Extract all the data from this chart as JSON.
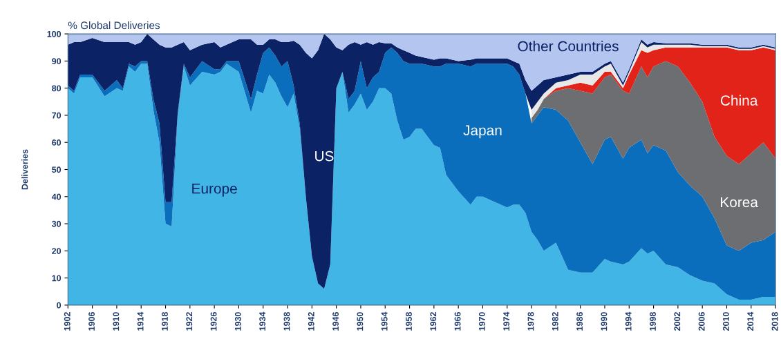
{
  "chart_data": {
    "type": "area",
    "stacked": true,
    "title": "% Global Deliveries",
    "ylabel": "Deliveries",
    "x": [
      1902,
      1903,
      1904,
      1906,
      1908,
      1910,
      1911,
      1912,
      1913,
      1914,
      1915,
      1916,
      1917,
      1918,
      1919,
      1920,
      1921,
      1922,
      1924,
      1926,
      1927,
      1928,
      1930,
      1932,
      1933,
      1934,
      1935,
      1936,
      1937,
      1938,
      1939,
      1940,
      1941,
      1942,
      1943,
      1944,
      1945,
      1946,
      1947,
      1948,
      1949,
      1950,
      1951,
      1952,
      1953,
      1954,
      1955,
      1956,
      1957,
      1958,
      1959,
      1960,
      1962,
      1963,
      1964,
      1966,
      1968,
      1969,
      1970,
      1972,
      1974,
      1975,
      1976,
      1977,
      1978,
      1979,
      1980,
      1982,
      1984,
      1986,
      1988,
      1990,
      1991,
      1993,
      1994,
      1996,
      1997,
      1998,
      2000,
      2002,
      2004,
      2006,
      2008,
      2010,
      2012,
      2014,
      2016,
      2018
    ],
    "series": [
      {
        "name": "Europe",
        "color": "#41b6e6",
        "values": [
          80,
          78,
          84,
          84,
          77,
          80,
          79,
          88,
          86,
          89,
          89,
          72,
          60,
          30,
          29,
          70,
          88,
          81,
          86,
          85,
          86,
          89,
          86,
          71,
          79,
          78,
          85,
          82,
          77,
          73,
          78,
          65,
          40,
          18,
          8,
          6,
          15,
          80,
          86,
          71,
          74,
          78,
          72,
          75,
          80,
          80,
          78,
          68,
          61,
          62,
          65,
          65,
          59,
          58,
          48,
          42,
          37,
          40,
          40,
          38,
          36,
          37,
          37,
          34,
          27,
          24,
          20,
          23,
          13,
          12,
          12,
          17,
          16,
          15,
          16,
          21,
          19,
          20,
          15,
          14,
          11,
          9,
          8,
          4,
          2,
          2,
          3,
          3
        ]
      },
      {
        "name": "Japan",
        "color": "#0a6ebd",
        "values": [
          1,
          1,
          1,
          1,
          2,
          3,
          1,
          1,
          2,
          1,
          1,
          4,
          7,
          8,
          9,
          1,
          1,
          3,
          4,
          2,
          1,
          1,
          4,
          5,
          6,
          15,
          10,
          10,
          11,
          17,
          3,
          2,
          0,
          0,
          0,
          0,
          0,
          0,
          0,
          5,
          5,
          12,
          8,
          9,
          6,
          13,
          17,
          25,
          29,
          27,
          24,
          24,
          29,
          30,
          41,
          47,
          51,
          49,
          49,
          51,
          53,
          51,
          48,
          44,
          40,
          46,
          53,
          49,
          55,
          48,
          40,
          44,
          46,
          39,
          42,
          40,
          37,
          39,
          42,
          35,
          33,
          31,
          24,
          18,
          18,
          21,
          21,
          24
        ]
      },
      {
        "name": "Korea",
        "color": "#6d6e71",
        "values": [
          null,
          null,
          null,
          null,
          null,
          null,
          null,
          null,
          null,
          null,
          null,
          null,
          null,
          null,
          null,
          null,
          null,
          null,
          null,
          null,
          null,
          null,
          null,
          null,
          null,
          null,
          null,
          null,
          null,
          null,
          null,
          null,
          null,
          null,
          null,
          null,
          null,
          null,
          null,
          null,
          null,
          null,
          null,
          null,
          null,
          null,
          null,
          null,
          null,
          null,
          null,
          null,
          null,
          null,
          null,
          null,
          null,
          null,
          null,
          null,
          null,
          null,
          null,
          null,
          2,
          2,
          3,
          7,
          12,
          19,
          26,
          23,
          23,
          25,
          20,
          27,
          28,
          29,
          33,
          39,
          38,
          35,
          30,
          33,
          32,
          33,
          36,
          27
        ]
      },
      {
        "name": "China",
        "color": "#e2231a",
        "values": [
          null,
          null,
          null,
          null,
          null,
          null,
          null,
          null,
          null,
          null,
          null,
          null,
          null,
          null,
          null,
          null,
          null,
          null,
          null,
          null,
          null,
          null,
          null,
          null,
          null,
          null,
          null,
          null,
          null,
          null,
          null,
          null,
          null,
          null,
          null,
          null,
          null,
          null,
          null,
          null,
          null,
          null,
          null,
          null,
          null,
          null,
          null,
          null,
          null,
          null,
          null,
          null,
          null,
          null,
          null,
          null,
          null,
          null,
          null,
          null,
          null,
          null,
          null,
          null,
          null,
          null,
          0,
          1,
          1,
          3,
          3,
          2,
          1,
          1,
          7,
          6,
          9,
          6,
          5,
          7,
          13,
          20,
          33,
          40,
          42,
          38,
          35,
          40
        ]
      },
      {
        "color": "#e8e8e8",
        "values": [
          null,
          null,
          null,
          null,
          null,
          null,
          null,
          null,
          null,
          null,
          null,
          null,
          null,
          null,
          null,
          null,
          null,
          null,
          null,
          null,
          null,
          null,
          null,
          null,
          null,
          null,
          null,
          null,
          null,
          null,
          null,
          null,
          null,
          null,
          null,
          null,
          null,
          null,
          null,
          null,
          null,
          null,
          null,
          null,
          null,
          null,
          null,
          null,
          null,
          null,
          null,
          null,
          null,
          null,
          null,
          null,
          null,
          null,
          null,
          null,
          null,
          null,
          null,
          null,
          3,
          3,
          2,
          2,
          2,
          3,
          4,
          2,
          3,
          1,
          1,
          3,
          2,
          2,
          1,
          1,
          1,
          0.5,
          0.5,
          0.5,
          0.5,
          0.5,
          0.5,
          0.5
        ]
      },
      {
        "name": "US",
        "color": "#0b2265",
        "values": [
          15,
          18,
          12,
          13.5,
          18,
          14,
          17,
          8,
          8,
          7,
          10,
          22,
          29,
          57,
          57,
          25,
          8,
          10,
          6,
          10,
          8,
          6,
          8,
          22,
          11,
          3,
          3,
          6,
          9,
          7,
          16.5,
          29,
          53,
          73,
          86,
          94,
          83,
          15,
          8,
          20,
          18,
          6,
          17,
          12,
          11,
          3.5,
          1.5,
          2,
          4,
          4,
          3,
          2.5,
          2.5,
          3,
          2,
          1,
          2.5,
          2,
          2,
          2,
          2,
          2,
          4,
          5,
          7,
          6,
          5,
          2,
          2,
          1,
          1,
          1,
          1,
          1,
          1,
          1,
          1,
          1,
          0.5,
          0.5,
          0.5,
          0.5,
          0.5,
          0.5,
          0.5,
          0.5,
          0.5,
          0.5
        ]
      },
      {
        "name": "Other Countries",
        "color": "#b4c6f0",
        "values": [
          4,
          3,
          3,
          1.5,
          3,
          3,
          3,
          3,
          4,
          3,
          0,
          2,
          4,
          5,
          5,
          4,
          3,
          6,
          4,
          3,
          5,
          4,
          2,
          2,
          4,
          4,
          2,
          2,
          3,
          3,
          2.5,
          4,
          7,
          9,
          6,
          0,
          2,
          5,
          6,
          4,
          3,
          4,
          3,
          4,
          3,
          3.5,
          3.5,
          5,
          6,
          7,
          8,
          8.5,
          9.5,
          9,
          9,
          10,
          9.5,
          9,
          9,
          9,
          9,
          10,
          11,
          17,
          21,
          19,
          17,
          16,
          15,
          14,
          14,
          11,
          10,
          18,
          13,
          2,
          4,
          3,
          3.5,
          3.5,
          3.5,
          4,
          4,
          4,
          5,
          5,
          4,
          5
        ]
      }
    ],
    "xlim": [
      1902,
      2018
    ],
    "xticks": [
      1902,
      1906,
      1910,
      1914,
      1918,
      1922,
      1926,
      1930,
      1934,
      1938,
      1942,
      1946,
      1950,
      1954,
      1958,
      1962,
      1966,
      1970,
      1974,
      1978,
      1982,
      1986,
      1990,
      1994,
      1998,
      2002,
      2006,
      2010,
      2014,
      2018
    ],
    "ylim": [
      0,
      100
    ],
    "yticks": [
      0,
      10,
      20,
      30,
      40,
      50,
      60,
      70,
      80,
      90,
      100
    ],
    "grid": false,
    "legend": false
  }
}
